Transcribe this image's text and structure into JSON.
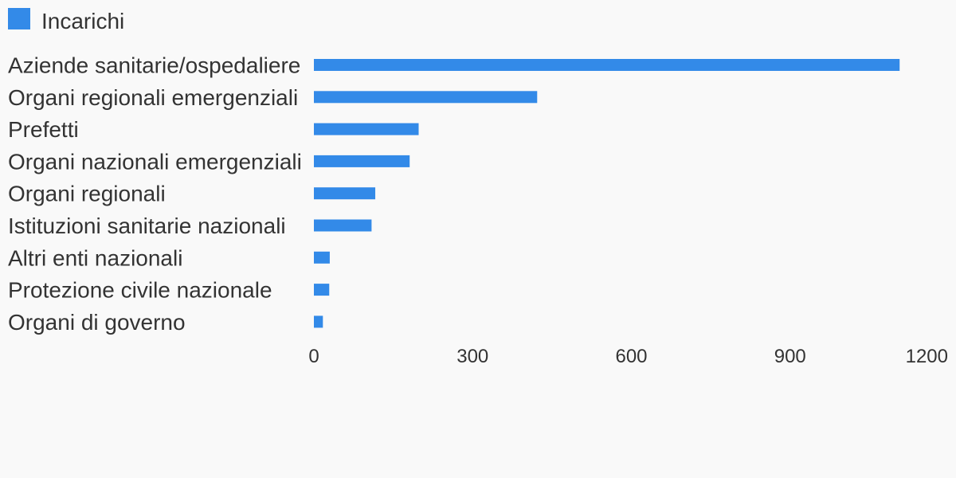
{
  "colors": {
    "background": "#f9f9f9",
    "bar": "#338ae8",
    "text": "#333333"
  },
  "chart_data": {
    "type": "bar",
    "orientation": "horizontal",
    "title": "",
    "xlabel": "",
    "ylabel": "",
    "legend_position": "top-left",
    "grid": false,
    "xlim": [
      0,
      1200
    ],
    "x_ticks": [
      "0",
      "300",
      "600",
      "900",
      "1200"
    ],
    "categories": [
      "Aziende sanitarie/ospedaliere",
      "Organi regionali emergenziali",
      "Prefetti",
      "Organi nazionali emergenziali",
      "Organi regionali",
      "Istituzioni sanitarie nazionali",
      "Altri enti nazionali",
      "Protezione civile nazionale",
      "Organi di governo"
    ],
    "series": [
      {
        "name": "Incarichi",
        "color": "#338ae8",
        "values": [
          1107,
          422,
          198,
          181,
          116,
          109,
          30,
          29,
          17
        ]
      }
    ]
  }
}
